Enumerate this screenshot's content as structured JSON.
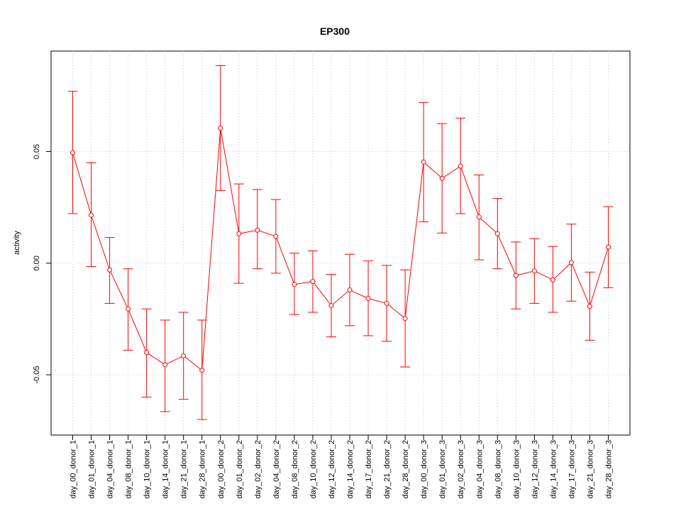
{
  "chart_data": {
    "type": "line",
    "title": "EP300",
    "xlabel": "",
    "ylabel": "activity",
    "ylim": [
      -0.077,
      0.095
    ],
    "yticks": [
      -0.05,
      0.0,
      0.05
    ],
    "ytick_labels": [
      "-0.05",
      "0.00",
      "0.05"
    ],
    "grid": true,
    "color": "#ff0000",
    "categories": [
      "day_00_donor_1",
      "day_01_donor_1",
      "day_04_donor_1",
      "day_08_donor_1",
      "day_10_donor_1",
      "day_14_donor_1",
      "day_21_donor_1",
      "day_28_donor_1",
      "day_00_donor_2",
      "day_01_donor_2",
      "day_02_donor_2",
      "day_04_donor_2",
      "day_08_donor_2",
      "day_10_donor_2",
      "day_12_donor_2",
      "day_14_donor_2",
      "day_17_donor_2",
      "day_21_donor_2",
      "day_28_donor_2",
      "day_00_donor_3",
      "day_01_donor_3",
      "day_02_donor_3",
      "day_04_donor_3",
      "day_08_donor_3",
      "day_10_donor_3",
      "day_12_donor_3",
      "day_14_donor_3",
      "day_17_donor_3",
      "day_21_donor_3",
      "day_28_donor_3"
    ],
    "values": [
      0.0495,
      0.0215,
      -0.003,
      -0.0205,
      -0.04,
      -0.0455,
      -0.0415,
      -0.048,
      0.0605,
      0.0132,
      0.0148,
      0.012,
      -0.0095,
      -0.0082,
      -0.019,
      -0.012,
      -0.0158,
      -0.018,
      -0.0248,
      0.0453,
      0.038,
      0.0435,
      0.0207,
      0.0132,
      -0.0055,
      -0.0035,
      -0.0075,
      0.0003,
      -0.0193,
      0.0072
    ],
    "upper": [
      0.077,
      0.045,
      0.0115,
      -0.0025,
      -0.0205,
      -0.0255,
      -0.022,
      -0.0255,
      0.0885,
      0.0355,
      0.033,
      0.0285,
      0.0045,
      0.0055,
      -0.005,
      0.004,
      0.001,
      -0.001,
      -0.003,
      0.072,
      0.0625,
      0.065,
      0.0395,
      0.029,
      0.0095,
      0.011,
      0.0075,
      0.0175,
      -0.004,
      0.0253
    ],
    "lower": [
      0.0222,
      -0.0015,
      -0.018,
      -0.039,
      -0.06,
      -0.0665,
      -0.061,
      -0.07,
      0.0325,
      -0.009,
      -0.0025,
      -0.0045,
      -0.023,
      -0.022,
      -0.033,
      -0.028,
      -0.0325,
      -0.035,
      -0.0465,
      0.0185,
      0.0135,
      0.0222,
      0.0015,
      -0.0025,
      -0.0205,
      -0.018,
      -0.022,
      -0.017,
      -0.0345,
      -0.011
    ]
  }
}
